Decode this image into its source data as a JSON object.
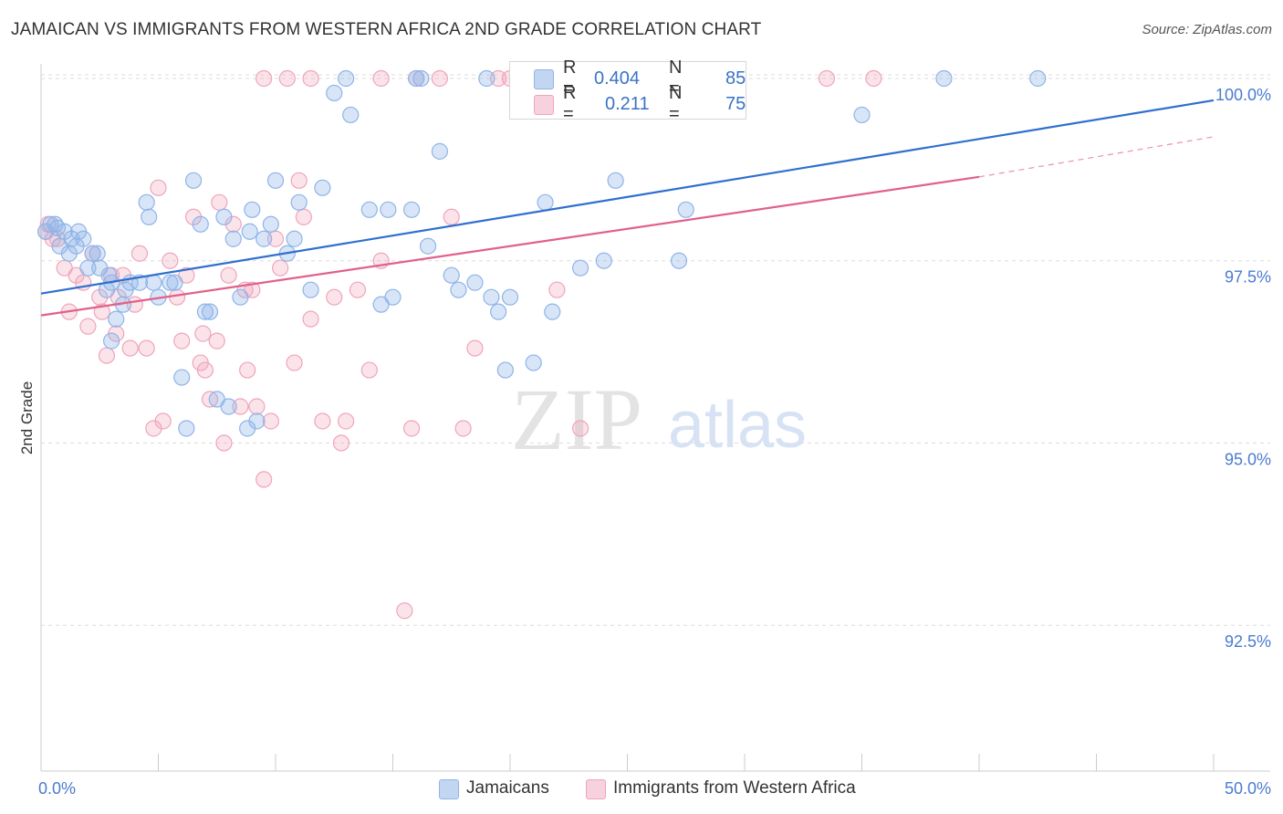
{
  "title": "JAMAICAN VS IMMIGRANTS FROM WESTERN AFRICA 2ND GRADE CORRELATION CHART",
  "source": "Source: ZipAtlas.com",
  "watermark": {
    "zip": "ZIP",
    "atlas": "atlas"
  },
  "colors": {
    "blue": "#8fb4e8",
    "blue_fill": "rgba(143,180,232,0.35)",
    "blue_line": "#2f6fcf",
    "pink": "#f0a4bb",
    "pink_fill": "rgba(240,164,187,0.30)",
    "pink_line": "#e0608c",
    "axis_text": "#4a7bd0",
    "grid": "#dcdcdc"
  },
  "legend": {
    "rows": [
      {
        "r_label": "R =",
        "r_value": "0.404",
        "n_label": "N =",
        "n_value": "85"
      },
      {
        "r_label": "R =",
        "r_value": "0.211",
        "n_label": "N =",
        "n_value": "75"
      }
    ]
  },
  "bottom_legend": [
    "Jamaicans",
    "Immigrants from Western Africa"
  ],
  "chart_data": {
    "type": "scatter",
    "xlabel": "",
    "ylabel": "2nd Grade",
    "xlim": [
      0,
      50
    ],
    "ylim": [
      90.5,
      100.2
    ],
    "x_tick_labels": [
      "0.0%",
      "50.0%"
    ],
    "y_ticks": [
      92.5,
      95.0,
      97.5,
      100.0
    ],
    "y_tick_labels": [
      "92.5%",
      "95.0%",
      "97.5%",
      "100.0%"
    ],
    "grid": true,
    "series": [
      {
        "name": "Jamaicans",
        "trend": {
          "x": [
            0,
            50
          ],
          "y": [
            97.05,
            99.7
          ]
        },
        "points": [
          [
            0.2,
            97.9
          ],
          [
            0.4,
            98.0
          ],
          [
            0.6,
            98.0
          ],
          [
            0.8,
            97.7
          ],
          [
            1.0,
            97.9
          ],
          [
            1.2,
            97.6
          ],
          [
            1.5,
            97.7
          ],
          [
            1.8,
            97.8
          ],
          [
            2.0,
            97.4
          ],
          [
            2.2,
            97.6
          ],
          [
            2.5,
            97.4
          ],
          [
            2.8,
            97.1
          ],
          [
            3.0,
            97.2
          ],
          [
            3.2,
            96.7
          ],
          [
            3.5,
            96.9
          ],
          [
            3.8,
            97.2
          ],
          [
            4.2,
            97.2
          ],
          [
            4.5,
            98.3
          ],
          [
            4.8,
            97.2
          ],
          [
            5.0,
            97.0
          ],
          [
            5.5,
            97.2
          ],
          [
            6.0,
            95.9
          ],
          [
            7.0,
            96.8
          ],
          [
            7.2,
            96.8
          ],
          [
            7.5,
            95.6
          ],
          [
            8.0,
            95.5
          ],
          [
            8.5,
            97.0
          ],
          [
            8.8,
            95.2
          ],
          [
            9.2,
            95.3
          ],
          [
            9.5,
            97.8
          ],
          [
            3.0,
            96.4
          ],
          [
            6.2,
            95.2
          ],
          [
            6.8,
            98.0
          ],
          [
            7.8,
            98.1
          ],
          [
            8.2,
            97.8
          ],
          [
            9.0,
            98.2
          ],
          [
            9.8,
            98.0
          ],
          [
            10.5,
            97.6
          ],
          [
            10.0,
            98.6
          ],
          [
            11.0,
            98.3
          ],
          [
            11.5,
            97.1
          ],
          [
            12.0,
            98.5
          ],
          [
            12.5,
            99.8
          ],
          [
            13.0,
            100.0
          ],
          [
            14.0,
            98.2
          ],
          [
            14.5,
            96.9
          ],
          [
            15.0,
            97.0
          ],
          [
            15.8,
            98.2
          ],
          [
            16.0,
            100.0
          ],
          [
            16.5,
            97.7
          ],
          [
            17.0,
            99.0
          ],
          [
            17.5,
            97.3
          ],
          [
            17.8,
            97.1
          ],
          [
            19.0,
            100.0
          ],
          [
            19.2,
            97.0
          ],
          [
            19.5,
            96.8
          ],
          [
            20.0,
            97.0
          ],
          [
            19.8,
            96.0
          ],
          [
            21.0,
            96.1
          ],
          [
            21.5,
            98.3
          ],
          [
            21.8,
            96.8
          ],
          [
            23.0,
            97.4
          ],
          [
            24.0,
            97.5
          ],
          [
            24.5,
            98.6
          ],
          [
            26.5,
            100.0
          ],
          [
            27.2,
            97.5
          ],
          [
            27.5,
            98.2
          ],
          [
            35.0,
            99.5
          ],
          [
            38.5,
            100.0
          ],
          [
            42.5,
            100.0
          ],
          [
            1.6,
            97.9
          ],
          [
            1.3,
            97.8
          ],
          [
            13.2,
            99.5
          ],
          [
            4.6,
            98.1
          ],
          [
            6.5,
            98.6
          ],
          [
            3.6,
            97.1
          ],
          [
            10.8,
            97.8
          ],
          [
            5.7,
            97.2
          ],
          [
            2.4,
            97.6
          ],
          [
            14.8,
            98.2
          ],
          [
            0.7,
            97.95
          ],
          [
            18.5,
            97.2
          ],
          [
            16.2,
            100.0
          ],
          [
            2.9,
            97.3
          ],
          [
            8.9,
            97.9
          ]
        ]
      },
      {
        "name": "Immigrants from Western Africa",
        "trend": {
          "x": [
            0,
            40
          ],
          "y": [
            96.75,
            98.65
          ]
        },
        "trend_dashed": {
          "x": [
            40,
            50
          ],
          "y": [
            98.65,
            99.2
          ]
        },
        "points": [
          [
            0.2,
            97.9
          ],
          [
            0.3,
            98.0
          ],
          [
            0.5,
            97.8
          ],
          [
            0.7,
            97.8
          ],
          [
            1.0,
            97.4
          ],
          [
            1.2,
            96.8
          ],
          [
            1.5,
            97.3
          ],
          [
            1.8,
            97.2
          ],
          [
            2.0,
            96.6
          ],
          [
            2.2,
            97.6
          ],
          [
            2.5,
            97.0
          ],
          [
            2.8,
            96.2
          ],
          [
            3.0,
            97.3
          ],
          [
            3.2,
            96.5
          ],
          [
            3.5,
            97.3
          ],
          [
            3.8,
            96.3
          ],
          [
            4.0,
            96.9
          ],
          [
            4.2,
            97.6
          ],
          [
            4.5,
            96.3
          ],
          [
            4.8,
            95.2
          ],
          [
            5.0,
            98.5
          ],
          [
            5.2,
            95.3
          ],
          [
            5.5,
            97.5
          ],
          [
            5.8,
            97.0
          ],
          [
            6.0,
            96.4
          ],
          [
            6.2,
            97.3
          ],
          [
            6.5,
            98.1
          ],
          [
            6.8,
            96.1
          ],
          [
            7.0,
            96.0
          ],
          [
            7.2,
            95.6
          ],
          [
            7.5,
            96.4
          ],
          [
            7.8,
            95.0
          ],
          [
            8.0,
            97.3
          ],
          [
            8.2,
            98.0
          ],
          [
            8.5,
            95.5
          ],
          [
            8.8,
            96.0
          ],
          [
            9.0,
            97.1
          ],
          [
            9.2,
            95.5
          ],
          [
            9.5,
            94.5
          ],
          [
            9.8,
            95.3
          ],
          [
            10.0,
            97.8
          ],
          [
            10.2,
            97.4
          ],
          [
            10.8,
            96.1
          ],
          [
            11.0,
            98.6
          ],
          [
            11.2,
            98.1
          ],
          [
            11.5,
            96.7
          ],
          [
            12.0,
            95.3
          ],
          [
            12.5,
            97.0
          ],
          [
            12.8,
            95.0
          ],
          [
            13.0,
            95.3
          ],
          [
            13.5,
            97.1
          ],
          [
            14.0,
            96.0
          ],
          [
            14.5,
            97.5
          ],
          [
            15.5,
            92.7
          ],
          [
            15.8,
            95.2
          ],
          [
            16.0,
            100.0
          ],
          [
            17.0,
            100.0
          ],
          [
            17.5,
            98.1
          ],
          [
            18.0,
            95.2
          ],
          [
            18.5,
            96.3
          ],
          [
            19.5,
            100.0
          ],
          [
            20.0,
            100.0
          ],
          [
            22.0,
            97.1
          ],
          [
            23.0,
            95.2
          ],
          [
            33.5,
            100.0
          ],
          [
            35.5,
            100.0
          ],
          [
            10.5,
            100.0
          ],
          [
            11.5,
            100.0
          ],
          [
            9.5,
            100.0
          ],
          [
            14.5,
            100.0
          ],
          [
            3.3,
            97.0
          ],
          [
            6.9,
            96.5
          ],
          [
            7.6,
            98.3
          ],
          [
            8.7,
            97.1
          ],
          [
            2.6,
            96.8
          ]
        ]
      }
    ]
  }
}
